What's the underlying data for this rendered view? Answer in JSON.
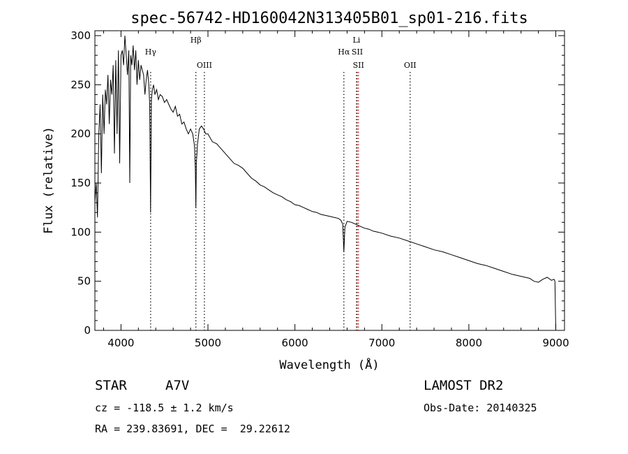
{
  "chart_data": {
    "type": "line",
    "title": "spec-56742-HD160042N313405B01_sp01-216.fits",
    "xlabel": "Wavelength (Å)",
    "ylabel": "Flux (relative)",
    "xlim": [
      3700,
      9100
    ],
    "ylim": [
      0,
      305
    ],
    "xticks": [
      4000,
      5000,
      6000,
      7000,
      8000,
      9000
    ],
    "yticks": [
      0,
      50,
      100,
      150,
      200,
      250,
      300
    ],
    "grid": false,
    "series": [
      {
        "color": "#000000",
        "x": [
          3700,
          3715,
          3730,
          3745,
          3760,
          3775,
          3790,
          3805,
          3820,
          3835,
          3850,
          3865,
          3880,
          3895,
          3910,
          3925,
          3940,
          3955,
          3970,
          3985,
          4000,
          4015,
          4030,
          4045,
          4060,
          4075,
          4090,
          4101,
          4112,
          4125,
          4140,
          4155,
          4170,
          4185,
          4200,
          4215,
          4230,
          4245,
          4260,
          4275,
          4290,
          4305,
          4320,
          4330,
          4340,
          4350,
          4360,
          4375,
          4390,
          4410,
          4430,
          4450,
          4475,
          4500,
          4525,
          4550,
          4575,
          4600,
          4625,
          4650,
          4675,
          4700,
          4725,
          4750,
          4775,
          4800,
          4825,
          4845,
          4855,
          4861,
          4867,
          4880,
          4900,
          4925,
          4950,
          4975,
          5000,
          5050,
          5100,
          5150,
          5200,
          5250,
          5300,
          5350,
          5400,
          5450,
          5500,
          5550,
          5600,
          5650,
          5700,
          5750,
          5800,
          5850,
          5900,
          5950,
          6000,
          6050,
          6100,
          6150,
          6200,
          6250,
          6300,
          6350,
          6400,
          6450,
          6500,
          6530,
          6550,
          6563,
          6575,
          6600,
          6650,
          6700,
          6750,
          6800,
          6850,
          6900,
          6950,
          7000,
          7100,
          7200,
          7300,
          7400,
          7500,
          7600,
          7700,
          7800,
          7900,
          8000,
          8100,
          8200,
          8300,
          8400,
          8500,
          8600,
          8700,
          8750,
          8800,
          8850,
          8900,
          8950,
          8980,
          8990,
          9000
        ],
        "y": [
          130,
          150,
          115,
          200,
          230,
          160,
          240,
          200,
          245,
          230,
          260,
          210,
          255,
          240,
          270,
          180,
          275,
          200,
          285,
          170,
          280,
          285,
          270,
          300,
          280,
          260,
          285,
          150,
          280,
          270,
          290,
          265,
          285,
          250,
          275,
          255,
          270,
          265,
          260,
          240,
          255,
          265,
          250,
          230,
          120,
          235,
          245,
          250,
          240,
          245,
          235,
          240,
          238,
          232,
          235,
          230,
          225,
          222,
          228,
          218,
          220,
          210,
          212,
          205,
          200,
          205,
          200,
          188,
          165,
          125,
          170,
          190,
          205,
          208,
          205,
          200,
          200,
          192,
          190,
          185,
          180,
          175,
          170,
          168,
          165,
          160,
          155,
          152,
          148,
          146,
          143,
          140,
          138,
          136,
          133,
          131,
          128,
          127,
          125,
          123,
          121,
          120,
          118,
          117,
          116,
          115,
          114,
          112,
          108,
          80,
          105,
          111,
          110,
          108,
          106,
          104,
          103,
          101,
          100,
          99,
          96,
          94,
          91,
          88,
          85,
          82,
          80,
          77,
          74,
          71,
          68,
          66,
          63,
          60,
          57,
          55,
          53,
          50,
          49,
          52,
          54,
          51,
          52,
          50,
          0
        ]
      }
    ],
    "annotations": [
      {
        "label": "Hγ",
        "x": 4341,
        "tier": 1,
        "color": "#000000"
      },
      {
        "label": "Hβ",
        "x": 4861,
        "tier": 0,
        "color": "#000000"
      },
      {
        "label": "OIII",
        "x": 4959,
        "tier": 2,
        "color": "#000000"
      },
      {
        "label": "Li",
        "x": 6708,
        "tier": 0,
        "color": "#000000"
      },
      {
        "label": "Hα",
        "x": 6563,
        "tier": 1,
        "color": "#000000"
      },
      {
        "label": "SII",
        "x": 6717,
        "tier": 1,
        "color": "#cc0000"
      },
      {
        "label": "SII",
        "x": 6731,
        "tier": 2,
        "color": "#cc0000"
      },
      {
        "label": "OII",
        "x": 7325,
        "tier": 2,
        "color": "#000000"
      }
    ]
  },
  "info": {
    "object_type": "STAR",
    "subclass": "A7V",
    "survey": "LAMOST DR2",
    "cz": "cz = -118.5 ± 1.2 km/s",
    "obs_date": "Obs-Date: 20140325",
    "coords": "RA = 239.83691, DEC =  29.22612"
  }
}
